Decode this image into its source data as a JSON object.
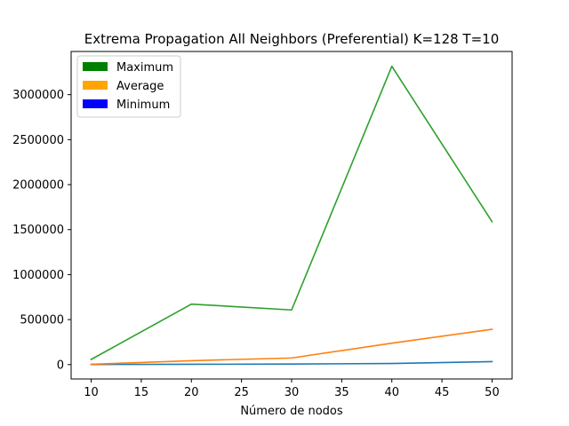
{
  "chart_data": {
    "type": "line",
    "title": "Extrema Propagation All Neighbors (Preferential) K=128 T=10",
    "xlabel": "Número de nodos",
    "ylabel": "",
    "x": [
      10,
      20,
      30,
      40,
      50
    ],
    "xticks": [
      10,
      15,
      20,
      25,
      30,
      35,
      40,
      45,
      50
    ],
    "yticks": [
      0,
      500000,
      1000000,
      1500000,
      2000000,
      2500000,
      3000000
    ],
    "xlim": [
      8,
      52
    ],
    "ylim": [
      -160000,
      3480000
    ],
    "grid": false,
    "legend_position": "top-left",
    "legend": [
      {
        "label": "Maximum",
        "color": "#008000"
      },
      {
        "label": "Average",
        "color": "#ffa500"
      },
      {
        "label": "Minimum",
        "color": "#0000ff"
      }
    ],
    "series": [
      {
        "color": "#1f77b4",
        "values": [
          1000,
          3000,
          6000,
          12000,
          33000
        ]
      },
      {
        "color": "#ff7f0e",
        "values": [
          3000,
          43000,
          73000,
          238000,
          392000
        ]
      },
      {
        "color": "#2ca02c",
        "values": [
          57000,
          672000,
          607000,
          3315000,
          1588000
        ]
      }
    ]
  }
}
